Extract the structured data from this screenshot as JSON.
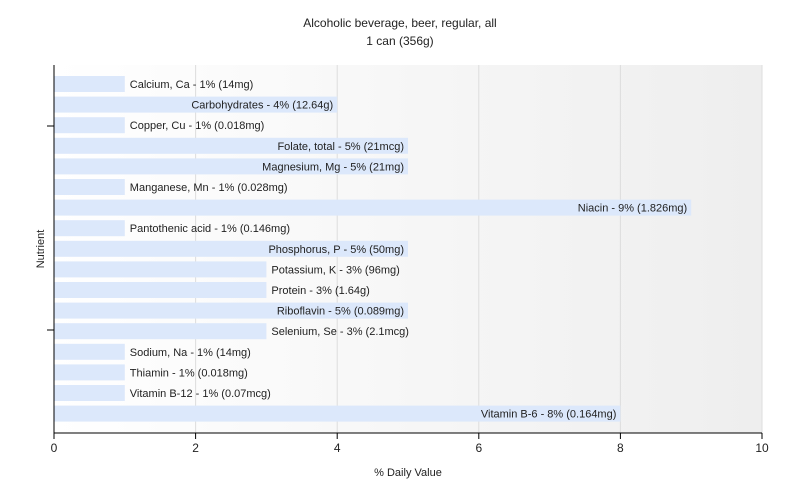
{
  "chart_data": {
    "type": "bar",
    "orientation": "horizontal",
    "title": "Alcoholic beverage, beer, regular, all",
    "subtitle": "1 can (356g)",
    "xlabel": "% Daily Value",
    "ylabel": "Nutrient",
    "xlim": [
      0,
      10
    ],
    "xticks": [
      "0",
      "2",
      "4",
      "6",
      "8",
      "10"
    ],
    "grid": true,
    "bar_color": "#dce8fb",
    "categories": [
      "Calcium, Ca",
      "Carbohydrates",
      "Copper, Cu",
      "Folate, total",
      "Magnesium, Mg",
      "Manganese, Mn",
      "Niacin",
      "Pantothenic acid",
      "Phosphorus, P",
      "Potassium, K",
      "Protein",
      "Riboflavin",
      "Selenium, Se",
      "Sodium, Na",
      "Thiamin",
      "Vitamin B-12",
      "Vitamin B-6"
    ],
    "values": [
      1,
      4,
      1,
      5,
      5,
      1,
      9,
      1,
      5,
      3,
      3,
      5,
      3,
      1,
      1,
      1,
      8
    ],
    "labels": [
      "Calcium, Ca - 1% (14mg)",
      "Carbohydrates - 4% (12.64g)",
      "Copper, Cu - 1% (0.018mg)",
      "Folate, total - 5% (21mcg)",
      "Magnesium, Mg - 5% (21mg)",
      "Manganese, Mn - 1% (0.028mg)",
      "Niacin - 9% (1.826mg)",
      "Pantothenic acid - 1% (0.146mg)",
      "Phosphorus, P - 5% (50mg)",
      "Potassium, K - 3% (96mg)",
      "Protein - 3% (1.64g)",
      "Riboflavin - 5% (0.089mg)",
      "Selenium, Se - 3% (2.1mcg)",
      "Sodium, Na - 1% (14mg)",
      "Thiamin - 1% (0.018mg)",
      "Vitamin B-12 - 1% (0.07mcg)",
      "Vitamin B-6 - 8% (0.164mg)"
    ]
  }
}
